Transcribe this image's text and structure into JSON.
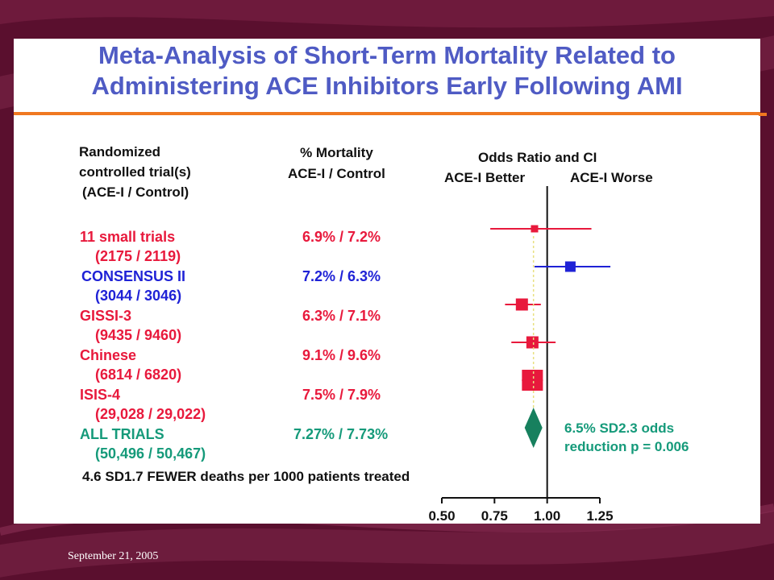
{
  "title_line1": "Meta-Analysis of Short-Term Mortality Related to",
  "title_line2": "Administering ACE Inhibitors Early Following AMI",
  "headers": {
    "trial_1": "Randomized",
    "trial_2": "controlled trial(s)",
    "trial_3": "(ACE-I / Control)",
    "mort_1": "% Mortality",
    "mort_2": "ACE-I / Control",
    "or_title": "Odds Ratio and CI",
    "better": "ACE-I Better",
    "worse": "ACE-I Worse"
  },
  "trials": [
    {
      "name": "11 small trials",
      "n": "(2175 / 2119)",
      "mortality": "6.9% / 7.2%"
    },
    {
      "name": "CONSENSUS II",
      "n": "(3044 / 3046)",
      "mortality": "7.2% / 6.3%"
    },
    {
      "name": "GISSI-3",
      "n": "(9435 / 9460)",
      "mortality": "6.3% / 7.1%"
    },
    {
      "name": "Chinese",
      "n": "(6814 / 6820)",
      "mortality": "9.1% / 9.6%"
    },
    {
      "name": "ISIS-4",
      "n": "(29,028 / 29,022)",
      "mortality": "7.5% / 7.9%"
    },
    {
      "name": "ALL TRIALS",
      "n": "(50,496 / 50,467)",
      "mortality": "7.27% / 7.73%"
    }
  ],
  "summary_line1": "6.5% SD2.3 odds",
  "summary_line2": "reduction p = 0.006",
  "footer_note": "4.6 SD1.7 FEWER deaths per 1000 patients treated",
  "date": "September 21, 2005",
  "colors": {
    "red": "#e8193c",
    "blue": "#1f22d6",
    "green": "#17805e",
    "title": "#4f5bc4",
    "rule": "#f07820"
  },
  "chart_data": {
    "type": "forest",
    "xlabel": "",
    "xlim": [
      0.5,
      1.25
    ],
    "xticks": [
      0.5,
      0.75,
      1.0,
      1.25
    ],
    "xtick_labels": [
      "0.50",
      "0.75",
      "1.00",
      "1.25"
    ],
    "reference_line": 1.0,
    "series": [
      {
        "or": 0.94,
        "lo": 0.73,
        "hi": 1.21,
        "color": "red"
      },
      {
        "or": 1.11,
        "lo": 0.94,
        "hi": 1.3,
        "color": "blue"
      },
      {
        "or": 0.88,
        "lo": 0.8,
        "hi": 0.97,
        "color": "red"
      },
      {
        "or": 0.93,
        "lo": 0.83,
        "hi": 1.04,
        "color": "red"
      },
      {
        "or": 0.93,
        "lo": 0.88,
        "hi": 0.98,
        "color": "red"
      },
      {
        "or": 0.935,
        "lo": 0.915,
        "hi": 0.955,
        "color": "green",
        "diamond": true
      }
    ]
  }
}
